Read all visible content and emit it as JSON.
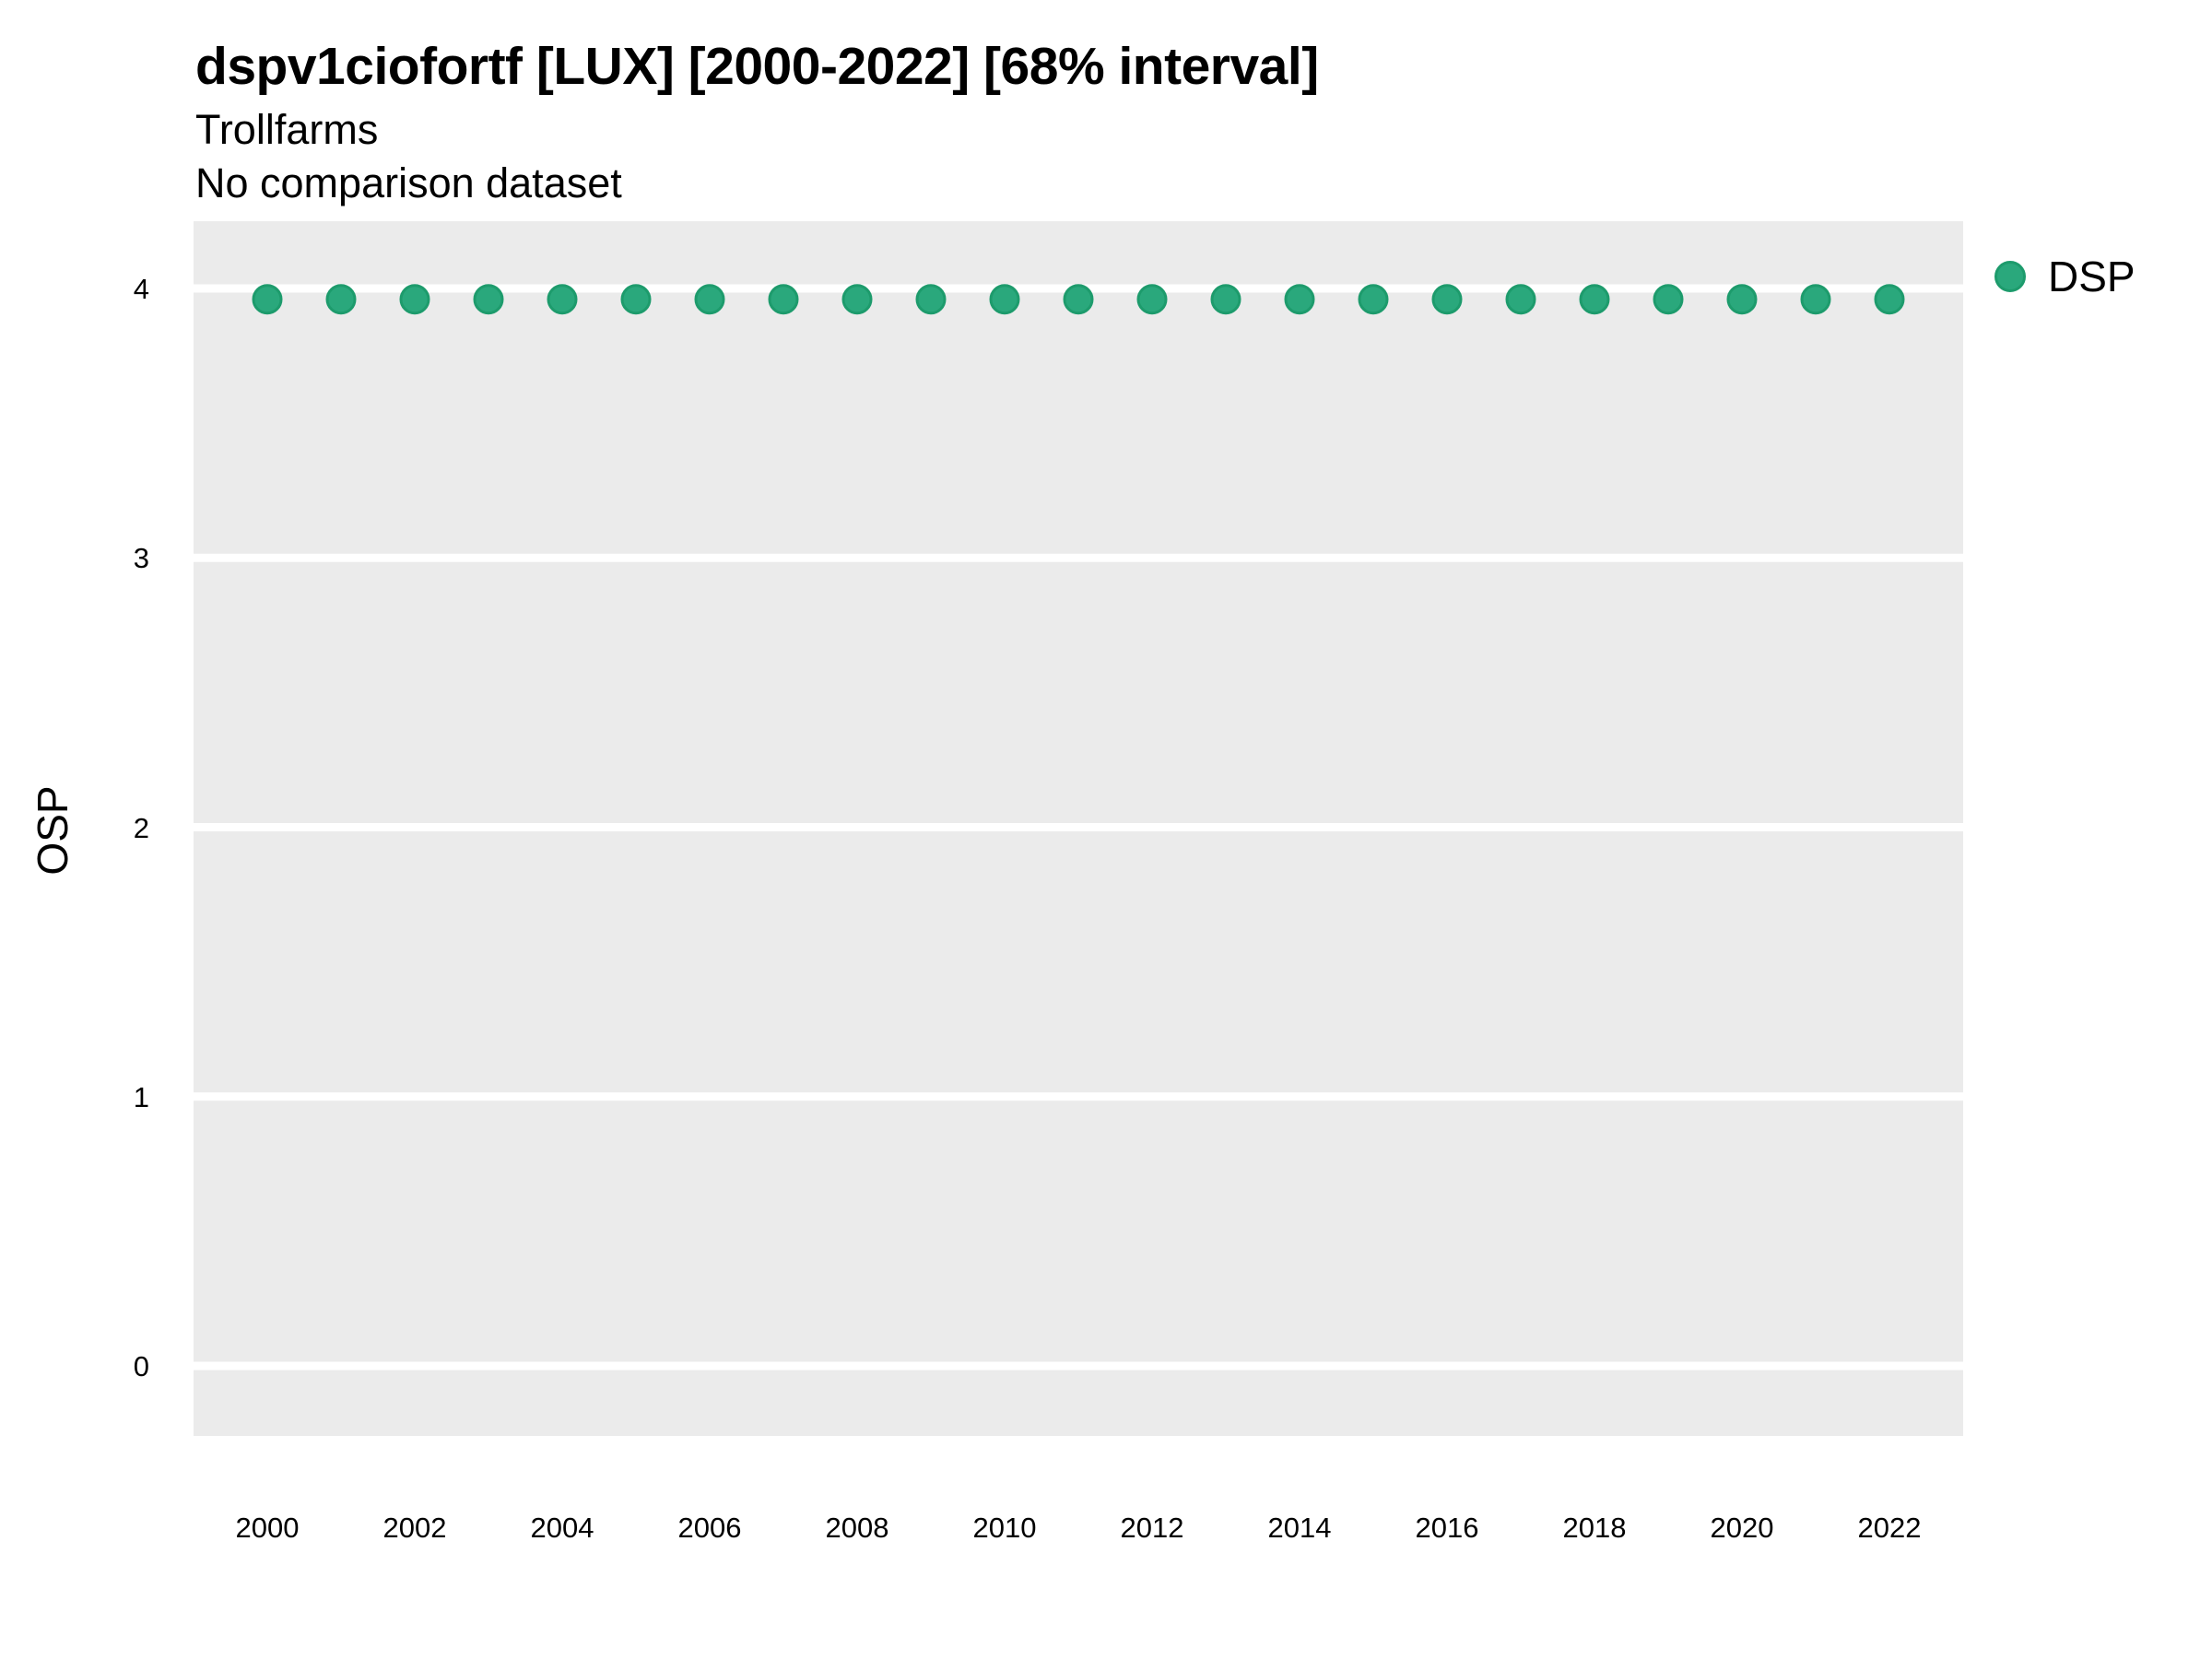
{
  "header": {
    "title": "dspv1ciofortf [LUX] [2000-2022] [68% interval]",
    "subtitle": "Trollfarms",
    "note": "No comparison dataset"
  },
  "legend": {
    "label": "DSP"
  },
  "colors": {
    "point_fill": "#2aa87c",
    "point_stroke": "#1d9b6c",
    "panel_bg": "#ebebeb",
    "gridline": "#ffffff",
    "text": "#000000"
  },
  "chart_data": {
    "type": "scatter",
    "title": "dspv1ciofortf [LUX] [2000-2022] [68% interval]",
    "subtitle": "Trollfarms",
    "note": "No comparison dataset",
    "xlabel": "",
    "ylabel": "OSP",
    "x": [
      2000,
      2001,
      2002,
      2003,
      2004,
      2005,
      2006,
      2007,
      2008,
      2009,
      2010,
      2011,
      2012,
      2013,
      2014,
      2015,
      2016,
      2017,
      2018,
      2019,
      2020,
      2021,
      2022
    ],
    "series": [
      {
        "name": "DSP",
        "values": [
          3.96,
          3.96,
          3.96,
          3.96,
          3.96,
          3.96,
          3.96,
          3.96,
          3.96,
          3.96,
          3.96,
          3.96,
          3.96,
          3.96,
          3.96,
          3.96,
          3.96,
          3.96,
          3.96,
          3.96,
          3.96,
          3.96,
          3.96
        ]
      }
    ],
    "xlim": [
      1999,
      2023
    ],
    "ylim": [
      -0.26,
      4.25
    ],
    "xticks": [
      2000,
      2002,
      2004,
      2006,
      2008,
      2010,
      2012,
      2014,
      2016,
      2018,
      2020,
      2022
    ],
    "yticks": [
      0,
      1,
      2,
      3,
      4
    ],
    "grid": "major-horizontal-white-on-gray",
    "legend_position": "right-top",
    "marker": "circle",
    "marker_radius_px": 15
  }
}
